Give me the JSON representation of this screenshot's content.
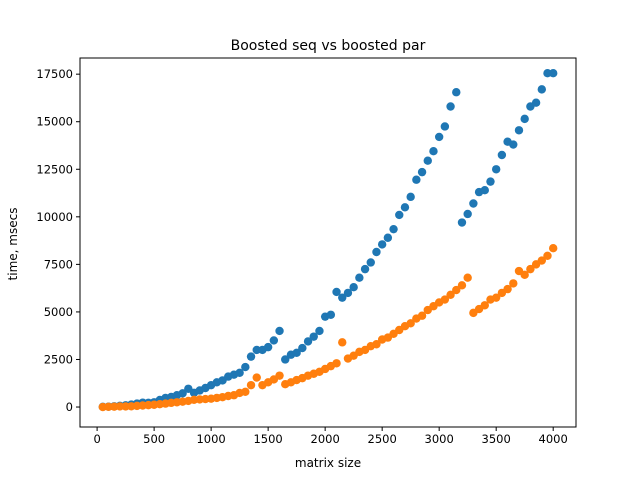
{
  "chart_data": {
    "type": "scatter",
    "title": "Boosted seq vs boosted par",
    "xlabel": "matrix size",
    "ylabel": "time, msecs",
    "xlim": [
      -150,
      4200
    ],
    "ylim": [
      -1050,
      18350
    ],
    "xticks": [
      0,
      500,
      1000,
      1500,
      2000,
      2500,
      3000,
      3500,
      4000
    ],
    "yticks": [
      0,
      2500,
      5000,
      7500,
      10000,
      12500,
      15000,
      17500
    ],
    "xtick_labels": [
      "0",
      "500",
      "1000",
      "1500",
      "2000",
      "2500",
      "3000",
      "3500",
      "4000"
    ],
    "ytick_labels": [
      "0",
      "2500",
      "5000",
      "7500",
      "10000",
      "12500",
      "15000",
      "17500"
    ],
    "grid": false,
    "legend": "none",
    "series": [
      {
        "color": "#1f77b4",
        "x": [
          50,
          100,
          150,
          200,
          250,
          300,
          350,
          400,
          450,
          500,
          550,
          600,
          650,
          700,
          750,
          800,
          850,
          900,
          950,
          1000,
          1050,
          1100,
          1150,
          1200,
          1250,
          1300,
          1350,
          1400,
          1450,
          1500,
          1550,
          1600,
          1650,
          1700,
          1750,
          1800,
          1850,
          1900,
          1950,
          2000,
          2050,
          2100,
          2150,
          2200,
          2250,
          2300,
          2350,
          2400,
          2450,
          2500,
          2550,
          2600,
          2650,
          2700,
          2750,
          2800,
          2850,
          2900,
          2950,
          3000,
          3050,
          3100,
          3150,
          3200,
          3250,
          3300,
          3350,
          3400,
          3450,
          3500,
          3550,
          3600,
          3650,
          3700,
          3750,
          3800,
          3850,
          3900,
          3950,
          4000
        ],
        "y": [
          10,
          20,
          40,
          60,
          90,
          130,
          180,
          230,
          220,
          250,
          370,
          480,
          530,
          620,
          720,
          960,
          750,
          870,
          1000,
          1150,
          1300,
          1400,
          1600,
          1700,
          1800,
          2100,
          2650,
          3000,
          3000,
          3150,
          3500,
          4000,
          2500,
          2750,
          2850,
          3100,
          3450,
          3700,
          4000,
          4750,
          4850,
          6050,
          5750,
          6000,
          6300,
          6800,
          7250,
          7600,
          8150,
          8550,
          8900,
          9350,
          10100,
          10500,
          11050,
          11950,
          12350,
          12950,
          13450,
          14200,
          14750,
          15800,
          16550,
          9700,
          10150,
          10700,
          11300,
          11400,
          11850,
          12500,
          13250,
          13950,
          13800,
          14550,
          15150,
          15800,
          16000,
          16700,
          17550,
          17550
        ]
      },
      {
        "color": "#ff7f0e",
        "x": [
          50,
          100,
          150,
          200,
          250,
          300,
          350,
          400,
          450,
          500,
          550,
          600,
          650,
          700,
          750,
          800,
          850,
          900,
          950,
          1000,
          1050,
          1100,
          1150,
          1200,
          1250,
          1300,
          1350,
          1400,
          1450,
          1500,
          1550,
          1600,
          1650,
          1700,
          1750,
          1800,
          1850,
          1900,
          1950,
          2000,
          2050,
          2100,
          2150,
          2200,
          2250,
          2300,
          2350,
          2400,
          2450,
          2500,
          2550,
          2600,
          2650,
          2700,
          2750,
          2800,
          2850,
          2900,
          2950,
          3000,
          3050,
          3100,
          3150,
          3200,
          3250,
          3300,
          3350,
          3400,
          3450,
          3500,
          3550,
          3600,
          3650,
          3700,
          3750,
          3800,
          3850,
          3900,
          3950,
          4000
        ],
        "y": [
          0,
          10,
          20,
          30,
          30,
          40,
          60,
          80,
          100,
          120,
          150,
          180,
          220,
          250,
          280,
          320,
          380,
          400,
          420,
          440,
          480,
          520,
          580,
          620,
          740,
          800,
          1150,
          1550,
          1150,
          1300,
          1450,
          1650,
          1200,
          1300,
          1420,
          1520,
          1650,
          1750,
          1850,
          2000,
          2150,
          2300,
          3400,
          2550,
          2700,
          2900,
          3000,
          3200,
          3300,
          3550,
          3650,
          3850,
          4050,
          4250,
          4400,
          4650,
          4800,
          5100,
          5300,
          5500,
          5650,
          5900,
          6150,
          6400,
          6800,
          4950,
          5150,
          5350,
          5650,
          5750,
          6000,
          6200,
          6500,
          7150,
          6950,
          7250,
          7500,
          7700,
          7950,
          8350
        ]
      }
    ]
  }
}
